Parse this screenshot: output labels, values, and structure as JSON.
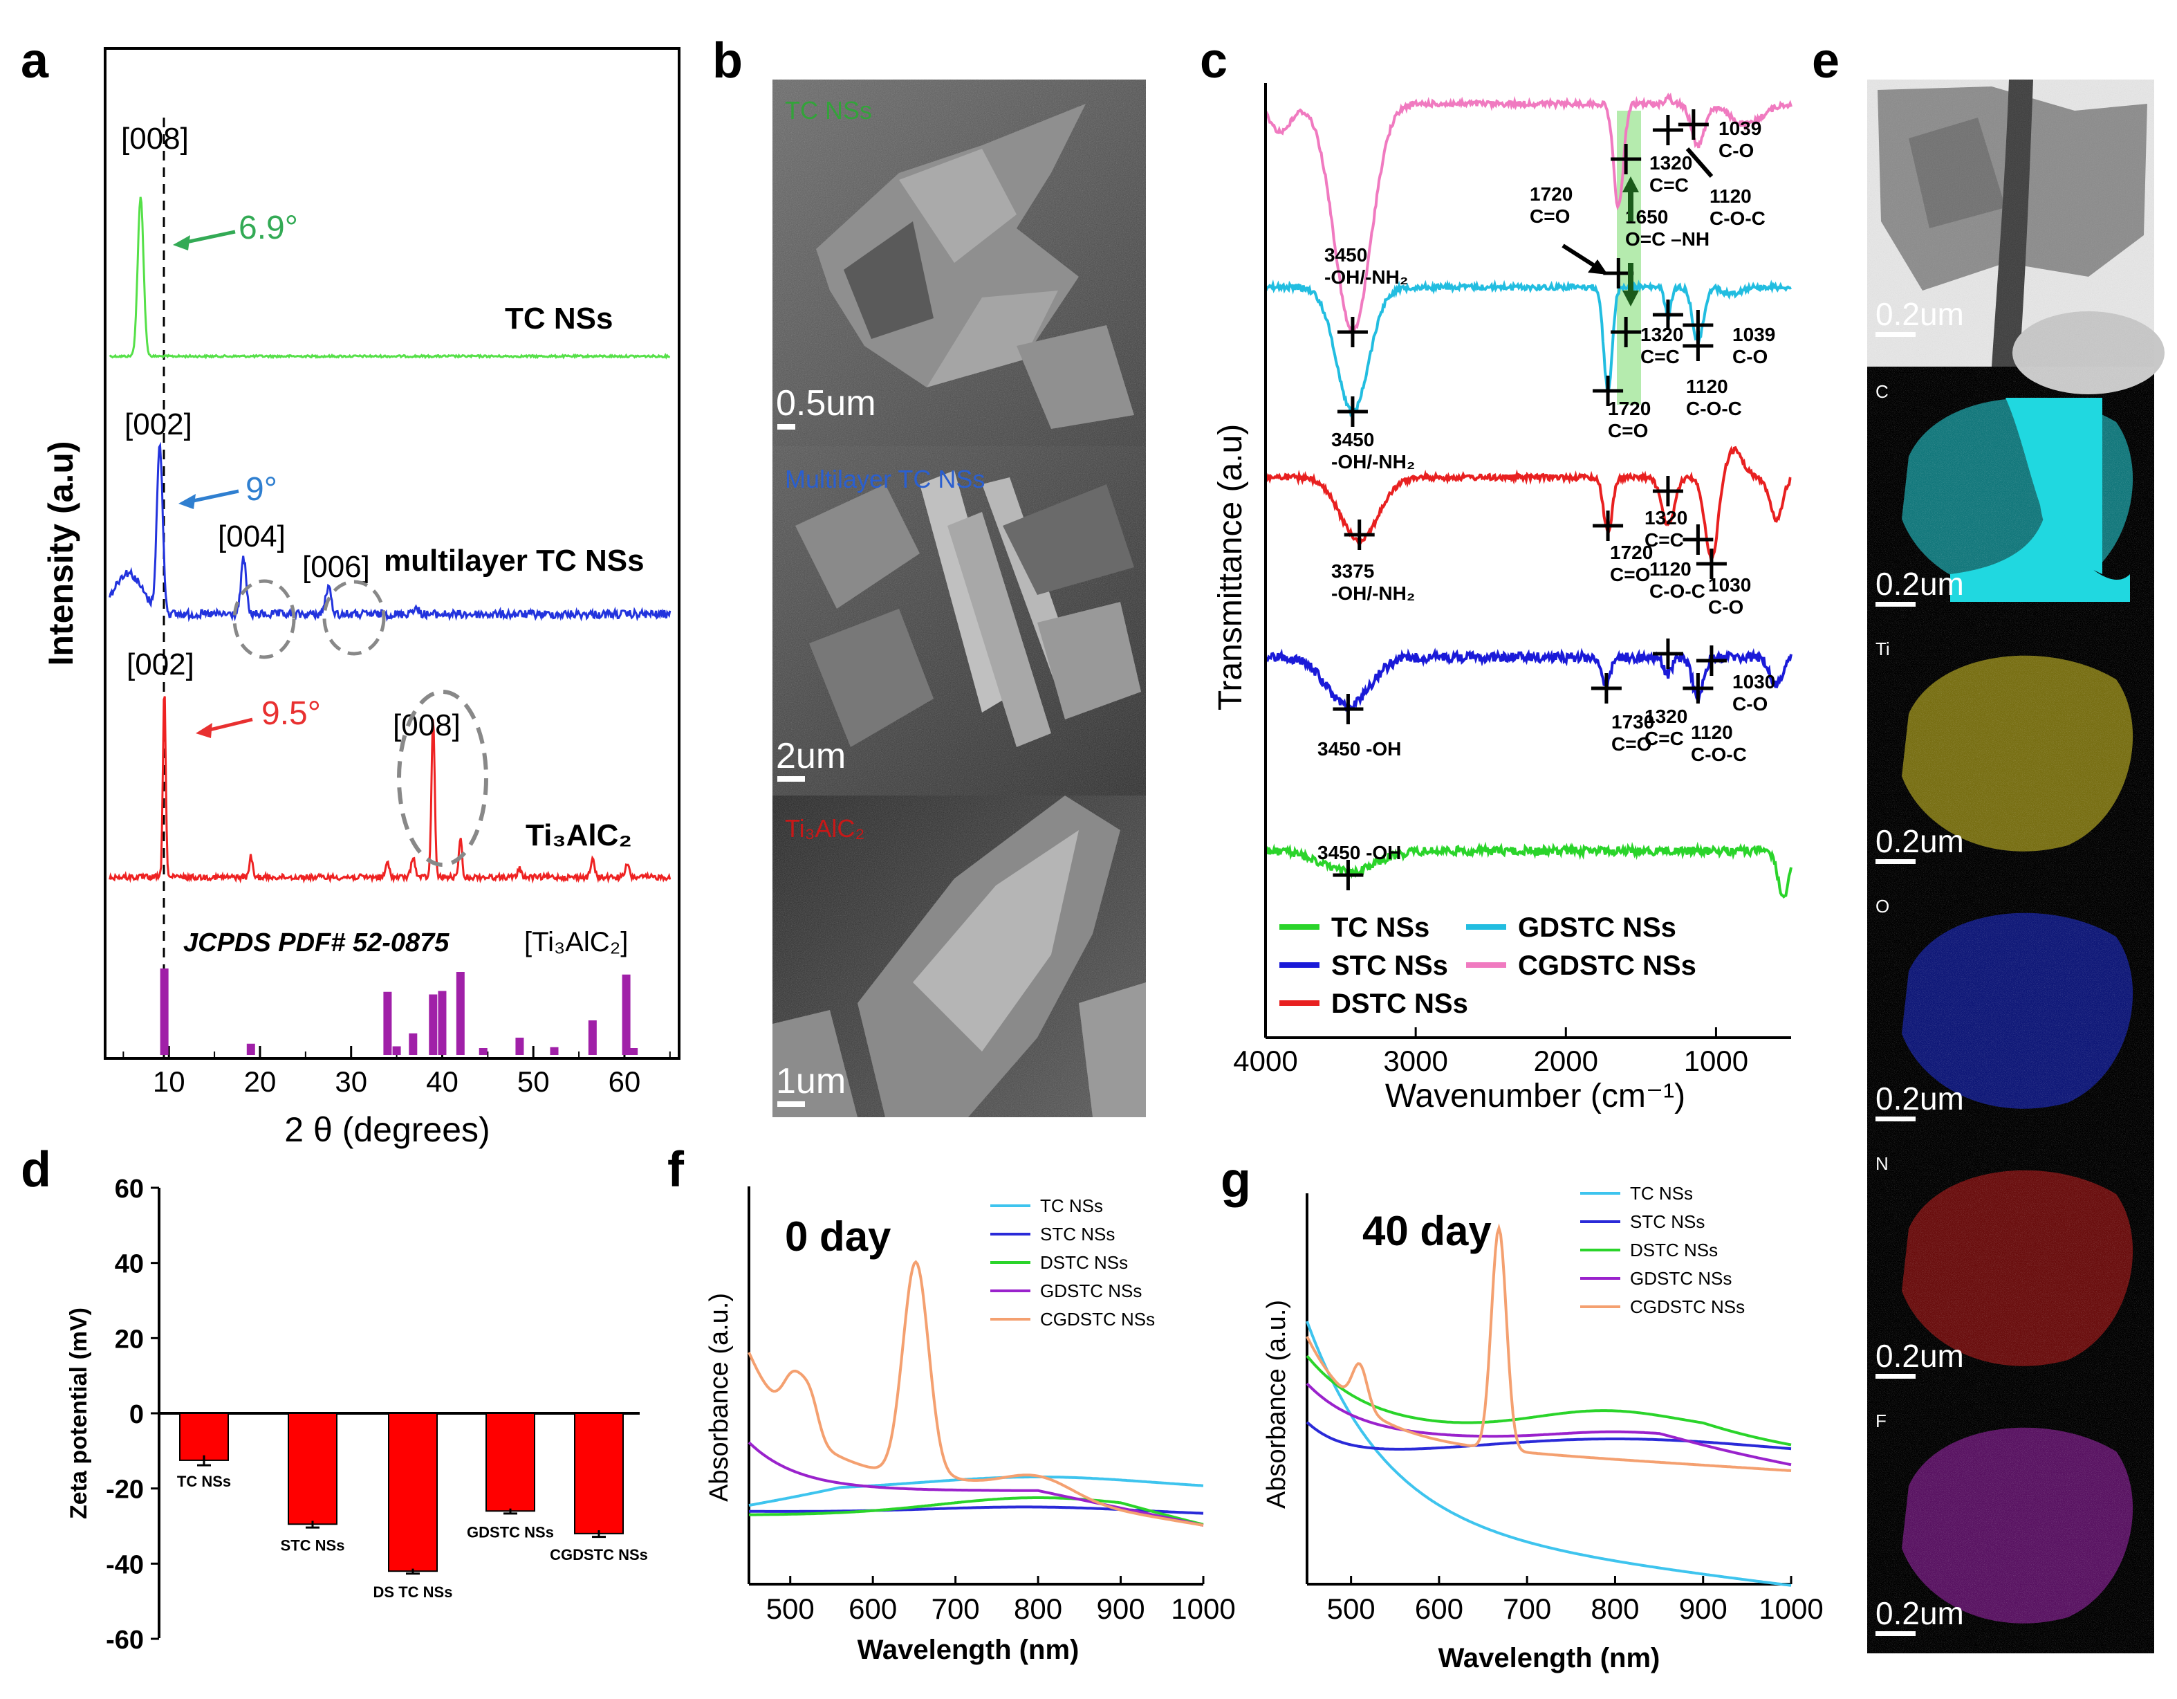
{
  "figure": {
    "panel_a": {
      "label": "a",
      "xlabel": "2 θ (degrees)",
      "ylabel": "Intensity (a.u)",
      "xticks": [
        "10",
        "20",
        "30",
        "40",
        "50",
        "60"
      ],
      "curves": [
        {
          "name": "TC NSs",
          "color": "#55e048",
          "peak": "[008]",
          "shift": "6.9°"
        },
        {
          "name": "multilayer TC NSs",
          "color": "#2233dd",
          "peaks": [
            "[002]",
            "[004]",
            "[006]"
          ],
          "shift": "9°"
        },
        {
          "name": "Ti₃AlC₂",
          "color": "#ee2222",
          "peaks": [
            "[002]",
            "[008]"
          ],
          "shift": "9.5°"
        }
      ],
      "shift_colors": {
        "tc": "#33aa55",
        "multi": "#2f7fd0",
        "ti": "#e83030"
      },
      "jcpds": "JCPDS PDF# 52-0875",
      "jcpds_phase": "[Ti₃AlC₂]",
      "ref_x": [
        9.5,
        19.0,
        34.0,
        35.0,
        36.8,
        39.0,
        40.0,
        42.0,
        44.5,
        48.5,
        52.3,
        56.5,
        60.2,
        61.0
      ],
      "ref_h": [
        1.0,
        0.13,
        0.73,
        0.1,
        0.25,
        0.7,
        0.74,
        0.96,
        0.08,
        0.2,
        0.09,
        0.4,
        0.93,
        0.08
      ]
    },
    "panel_b": {
      "label": "b",
      "images": [
        {
          "caption": "TC NSs",
          "caption_color": "#33a33a",
          "scale": "0.5um"
        },
        {
          "caption": "Multilayer TC NSs",
          "caption_color": "#2a5fd0",
          "scale": "2um"
        },
        {
          "caption": "Ti₃AlC₂",
          "caption_color": "#c81818",
          "scale": "1um"
        }
      ]
    },
    "panel_c": {
      "label": "c",
      "xlabel": "Wavenumber (cm⁻¹)",
      "ylabel": "Transmittance (a.u)",
      "xticks": [
        "4000",
        "3000",
        "2000",
        "1000"
      ],
      "legend": [
        {
          "name": "TC NSs",
          "color": "#2ad42a"
        },
        {
          "name": "GDSTC NSs",
          "color": "#22bde0"
        },
        {
          "name": "STC NSs",
          "color": "#1a1ad8"
        },
        {
          "name": "CGDSTC NSs",
          "color": "#f07ac0"
        },
        {
          "name": "DSTC NSs",
          "color": "#e82020"
        }
      ],
      "annotations": {
        "pink_3450": "3450\n-OH/-NH₂",
        "a1720": "1720\nC=O",
        "a1650": "1650\nO=C –NH",
        "a1320": "1320\nC=C",
        "a1039": "1039\nC-O",
        "a1120": "1120\nC-O-C",
        "cyan_3450": "3450\n-OH/-NH₂",
        "cyan_1720": "1720\nC=O",
        "cyan_1320": "1320\nC=C",
        "cyan_1120": "1120\nC-O-C",
        "cyan_1039": "1039\nC-O",
        "red_3375": "3375\n-OH/-NH₂",
        "red_1720": "1720\nC=O",
        "red_1320": "1320\nC=C",
        "red_1120": "1120\nC-O-C",
        "red_1030": "1030\nC-O",
        "blue_3450": "3450 -OH",
        "blue_1730": "1730\nC=O",
        "blue_1320": "1320\nC=C",
        "blue_1120": "1120\nC-O-C",
        "blue_1030": "1030\nC-O",
        "green_3450": "3450 -OH"
      }
    },
    "panel_d": {
      "label": "d",
      "ylabel": "Zeta potential (mV)",
      "yticks": [
        "60",
        "40",
        "20",
        "0",
        "-20",
        "-40",
        "-60"
      ],
      "bar_color": "#ff0000"
    },
    "panel_e": {
      "label": "e",
      "maps": [
        {
          "element": "C",
          "color": "#20d8e0",
          "scale": "0.2um"
        },
        {
          "element": "Ti",
          "color": "#d8c820",
          "scale": "0.2um"
        },
        {
          "element": "O",
          "color": "#1a2ad8",
          "scale": "0.2um"
        },
        {
          "element": "N",
          "color": "#c01818",
          "scale": "0.2um"
        },
        {
          "element": "F",
          "color": "#a020b0",
          "scale": "0.2um"
        }
      ],
      "tem_scale": "0.2um"
    },
    "panel_f": {
      "label": "f",
      "day": "0 day",
      "xlabel": "Wavelength (nm)",
      "ylabel": "Absorbance (a.u.)",
      "xticks": [
        "500",
        "600",
        "700",
        "800",
        "900",
        "1000"
      ],
      "legend": [
        {
          "name": "TC NSs",
          "color": "#3ec4ee"
        },
        {
          "name": "STC NSs",
          "color": "#2a2ad8"
        },
        {
          "name": "DSTC NSs",
          "color": "#2ad42a"
        },
        {
          "name": "GDSTC NSs",
          "color": "#9a22cc"
        },
        {
          "name": "CGDSTC NSs",
          "color": "#f4a070"
        }
      ]
    },
    "panel_g": {
      "label": "g",
      "day": "40 day",
      "xlabel": "Wavelength (nm)",
      "ylabel": "Absorbance (a.u.)",
      "xticks": [
        "500",
        "600",
        "700",
        "800",
        "900",
        "1000"
      ],
      "legend": [
        {
          "name": "TC NSs",
          "color": "#3ec4ee"
        },
        {
          "name": "STC NSs",
          "color": "#2a2ad8"
        },
        {
          "name": "DSTC NSs",
          "color": "#2ad42a"
        },
        {
          "name": "GDSTC NSs",
          "color": "#9a22cc"
        },
        {
          "name": "CGDSTC NSs",
          "color": "#f4a070"
        }
      ]
    }
  },
  "chart_data": [
    {
      "type": "bar",
      "title": "Zeta potential",
      "ylabel": "Zeta potential (mV)",
      "categories": [
        "TC NSs",
        "STC NSs",
        "DS TC NSs",
        "GDSTC NSs",
        "CGDSTC NSs"
      ],
      "values": [
        -12.5,
        -29.5,
        -42.0,
        -26.0,
        -32.0
      ],
      "errors": [
        1.2,
        0.8,
        0.6,
        0.6,
        0.8
      ],
      "ylim": [
        -60,
        60
      ]
    }
  ]
}
